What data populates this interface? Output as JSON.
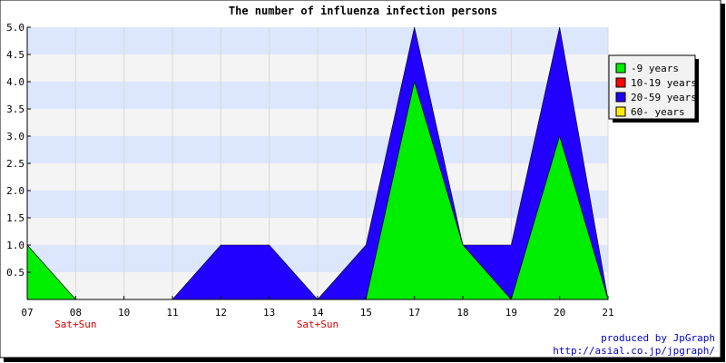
{
  "chart_data": {
    "type": "area",
    "title": "The number of influenza infection persons",
    "xlabel": "",
    "ylabel": "",
    "categories": [
      "07",
      "08",
      "10",
      "11",
      "12",
      "13",
      "14",
      "15",
      "17",
      "18",
      "19",
      "20",
      "21"
    ],
    "sublabels": [
      "",
      "Sat+Sun",
      "",
      "",
      "",
      "",
      "Sat+Sun",
      "",
      "",
      "",
      "",
      "",
      ""
    ],
    "ylim": [
      0,
      5
    ],
    "yticks": [
      "0.5",
      "1.0",
      "1.5",
      "2.0",
      "2.5",
      "3.0",
      "3.5",
      "4.0",
      "4.5",
      "5.0"
    ],
    "grid": true,
    "legend_position": "right",
    "stacked": true,
    "series": [
      {
        "name": "-9 years",
        "color": "#00ee00",
        "values": [
          1,
          0,
          0,
          0,
          0,
          0,
          0,
          0,
          4,
          1,
          0,
          3,
          0
        ]
      },
      {
        "name": "10-19 years",
        "color": "#ff0000",
        "values": [
          0,
          0,
          0,
          0,
          0,
          0,
          0,
          0,
          0,
          0,
          0,
          0,
          0
        ]
      },
      {
        "name": "20-59 years",
        "color": "#2200ff",
        "values": [
          0,
          0,
          0,
          0,
          1,
          1,
          0,
          1,
          1,
          0,
          1,
          2,
          0
        ]
      },
      {
        "name": "60- years",
        "color": "#ffee00",
        "values": [
          0,
          0,
          0,
          0,
          0,
          0,
          0,
          0,
          0,
          0,
          0,
          0,
          0
        ]
      }
    ]
  },
  "credit": {
    "line1": "produced by JpGraph",
    "line2": "http://asial.co.jp/jpgraph/"
  }
}
